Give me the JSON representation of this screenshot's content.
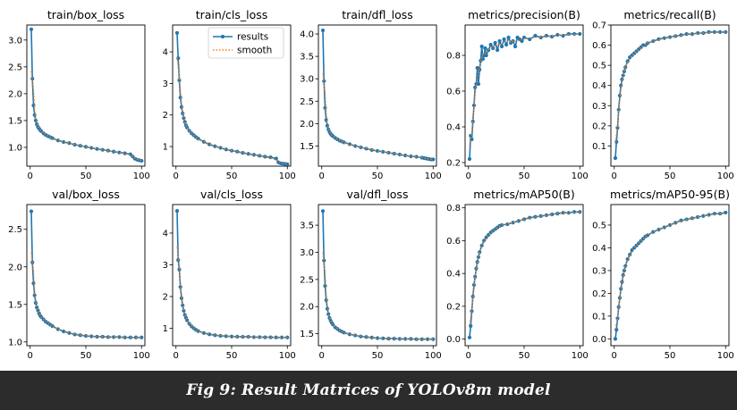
{
  "caption": "Fig 9: Result Matrices of YOLOv8m model",
  "colors": {
    "results": "#1f77b4",
    "smooth": "#ff7f0e"
  },
  "legend": {
    "results_label": "results",
    "smooth_label": "smooth"
  },
  "chart_data": [
    {
      "type": "line",
      "title": "train/box_loss",
      "xlim": [
        -3,
        103
      ],
      "ylim": [
        0.65,
        3.28
      ],
      "xticks": [
        0,
        50,
        100
      ],
      "yticks": [
        1.0,
        1.5,
        2.0,
        2.5,
        3.0
      ],
      "x": [
        1,
        2,
        3,
        4,
        5,
        6,
        7,
        8,
        9,
        10,
        12,
        14,
        16,
        18,
        20,
        25,
        30,
        35,
        40,
        45,
        50,
        55,
        60,
        65,
        70,
        75,
        80,
        85,
        90,
        92,
        94,
        96,
        98,
        100
      ],
      "values": [
        3.2,
        2.28,
        1.78,
        1.6,
        1.5,
        1.43,
        1.38,
        1.35,
        1.32,
        1.3,
        1.26,
        1.23,
        1.21,
        1.19,
        1.17,
        1.13,
        1.1,
        1.08,
        1.05,
        1.03,
        1.01,
        0.99,
        0.97,
        0.955,
        0.94,
        0.92,
        0.905,
        0.89,
        0.87,
        0.83,
        0.79,
        0.77,
        0.76,
        0.75
      ],
      "legend": false
    },
    {
      "type": "line",
      "title": "train/cls_loss",
      "xlim": [
        -3,
        103
      ],
      "ylim": [
        0.38,
        4.85
      ],
      "xticks": [
        0,
        50,
        100
      ],
      "yticks": [
        1,
        2,
        3,
        4
      ],
      "x": [
        1,
        2,
        3,
        4,
        5,
        6,
        7,
        8,
        9,
        10,
        12,
        14,
        16,
        18,
        20,
        25,
        30,
        35,
        40,
        45,
        50,
        55,
        60,
        65,
        70,
        75,
        80,
        85,
        90,
        92,
        94,
        96,
        98,
        100
      ],
      "values": [
        4.6,
        3.8,
        3.1,
        2.55,
        2.25,
        2.05,
        1.9,
        1.78,
        1.67,
        1.6,
        1.5,
        1.42,
        1.36,
        1.3,
        1.25,
        1.15,
        1.07,
        1.01,
        0.96,
        0.91,
        0.87,
        0.84,
        0.8,
        0.77,
        0.74,
        0.71,
        0.68,
        0.66,
        0.62,
        0.5,
        0.47,
        0.46,
        0.45,
        0.44
      ],
      "legend": true
    },
    {
      "type": "line",
      "title": "train/dfl_loss",
      "xlim": [
        -3,
        103
      ],
      "ylim": [
        1.05,
        4.2
      ],
      "xticks": [
        0,
        50,
        100
      ],
      "yticks": [
        1.5,
        2.0,
        2.5,
        3.0,
        3.5,
        4.0
      ],
      "x": [
        1,
        2,
        3,
        4,
        5,
        6,
        7,
        8,
        9,
        10,
        12,
        14,
        16,
        18,
        20,
        25,
        30,
        35,
        40,
        45,
        50,
        55,
        60,
        65,
        70,
        75,
        80,
        85,
        90,
        92,
        94,
        96,
        98,
        100
      ],
      "values": [
        4.08,
        2.95,
        2.35,
        2.08,
        1.95,
        1.87,
        1.81,
        1.77,
        1.74,
        1.72,
        1.68,
        1.65,
        1.62,
        1.6,
        1.58,
        1.54,
        1.5,
        1.47,
        1.44,
        1.41,
        1.39,
        1.37,
        1.35,
        1.33,
        1.31,
        1.29,
        1.27,
        1.26,
        1.24,
        1.23,
        1.22,
        1.21,
        1.2,
        1.2
      ],
      "legend": false
    },
    {
      "type": "line",
      "title": "metrics/precision(B)",
      "xlim": [
        -3,
        103
      ],
      "ylim": [
        0.18,
        0.97
      ],
      "xticks": [
        0,
        50,
        100
      ],
      "yticks": [
        0.2,
        0.4,
        0.6,
        0.8
      ],
      "x": [
        1,
        2,
        3,
        4,
        5,
        6,
        7,
        8,
        9,
        10,
        11,
        12,
        13,
        14,
        15,
        16,
        18,
        20,
        22,
        24,
        26,
        28,
        30,
        32,
        34,
        36,
        38,
        40,
        42,
        44,
        46,
        48,
        50,
        55,
        60,
        65,
        70,
        75,
        80,
        85,
        90,
        95,
        100
      ],
      "values": [
        0.22,
        0.35,
        0.33,
        0.43,
        0.52,
        0.62,
        0.64,
        0.73,
        0.64,
        0.72,
        0.77,
        0.85,
        0.78,
        0.8,
        0.84,
        0.8,
        0.83,
        0.86,
        0.84,
        0.87,
        0.83,
        0.88,
        0.85,
        0.89,
        0.86,
        0.9,
        0.87,
        0.88,
        0.85,
        0.9,
        0.89,
        0.88,
        0.9,
        0.89,
        0.91,
        0.9,
        0.91,
        0.905,
        0.915,
        0.91,
        0.92,
        0.92,
        0.92
      ],
      "legend": false
    },
    {
      "type": "line",
      "title": "metrics/recall(B)",
      "xlim": [
        -3,
        103
      ],
      "ylim": [
        0.0,
        0.7
      ],
      "xticks": [
        0,
        50,
        100
      ],
      "yticks": [
        0.1,
        0.2,
        0.3,
        0.4,
        0.5,
        0.6,
        0.7
      ],
      "x": [
        1,
        2,
        3,
        4,
        5,
        6,
        7,
        8,
        9,
        10,
        12,
        14,
        16,
        18,
        20,
        22,
        24,
        26,
        28,
        30,
        35,
        40,
        45,
        50,
        55,
        60,
        65,
        70,
        75,
        80,
        85,
        90,
        95,
        100
      ],
      "values": [
        0.04,
        0.12,
        0.19,
        0.28,
        0.35,
        0.4,
        0.43,
        0.45,
        0.47,
        0.49,
        0.52,
        0.54,
        0.55,
        0.56,
        0.57,
        0.58,
        0.59,
        0.6,
        0.6,
        0.61,
        0.62,
        0.63,
        0.635,
        0.64,
        0.645,
        0.65,
        0.655,
        0.655,
        0.66,
        0.66,
        0.665,
        0.665,
        0.665,
        0.665
      ],
      "legend": false
    },
    {
      "type": "line",
      "title": "val/box_loss",
      "xlim": [
        -3,
        103
      ],
      "ylim": [
        0.95,
        2.83
      ],
      "xticks": [
        0,
        50,
        100
      ],
      "yticks": [
        1.0,
        1.5,
        2.0,
        2.5
      ],
      "x": [
        1,
        2,
        3,
        4,
        5,
        6,
        7,
        8,
        9,
        10,
        12,
        14,
        16,
        18,
        20,
        25,
        30,
        35,
        40,
        45,
        50,
        55,
        60,
        65,
        70,
        75,
        80,
        85,
        90,
        95,
        100
      ],
      "values": [
        2.74,
        2.06,
        1.78,
        1.62,
        1.52,
        1.46,
        1.42,
        1.38,
        1.35,
        1.33,
        1.3,
        1.27,
        1.25,
        1.23,
        1.21,
        1.17,
        1.14,
        1.12,
        1.1,
        1.09,
        1.08,
        1.075,
        1.07,
        1.07,
        1.065,
        1.065,
        1.065,
        1.06,
        1.06,
        1.06,
        1.06
      ],
      "legend": false
    },
    {
      "type": "line",
      "title": "val/cls_loss",
      "xlim": [
        -3,
        103
      ],
      "ylim": [
        0.45,
        4.9
      ],
      "xticks": [
        0,
        50,
        100
      ],
      "yticks": [
        1,
        2,
        3,
        4
      ],
      "x": [
        1,
        2,
        3,
        4,
        5,
        6,
        7,
        8,
        9,
        10,
        12,
        14,
        16,
        18,
        20,
        25,
        30,
        35,
        40,
        45,
        50,
        55,
        60,
        65,
        70,
        75,
        80,
        85,
        90,
        95,
        100
      ],
      "values": [
        4.7,
        3.15,
        2.85,
        2.3,
        1.95,
        1.72,
        1.55,
        1.42,
        1.33,
        1.25,
        1.14,
        1.06,
        1.0,
        0.95,
        0.91,
        0.85,
        0.81,
        0.78,
        0.76,
        0.75,
        0.74,
        0.735,
        0.73,
        0.73,
        0.72,
        0.72,
        0.715,
        0.715,
        0.71,
        0.71,
        0.71
      ],
      "legend": false
    },
    {
      "type": "line",
      "title": "val/dfl_loss",
      "xlim": [
        -3,
        103
      ],
      "ylim": [
        1.28,
        3.88
      ],
      "xticks": [
        0,
        50,
        100
      ],
      "yticks": [
        1.5,
        2.0,
        2.5,
        3.0,
        3.5
      ],
      "x": [
        1,
        2,
        3,
        4,
        5,
        6,
        7,
        8,
        9,
        10,
        12,
        14,
        16,
        18,
        20,
        25,
        30,
        35,
        40,
        45,
        50,
        55,
        60,
        65,
        70,
        75,
        80,
        85,
        90,
        95,
        100
      ],
      "values": [
        3.76,
        2.85,
        2.38,
        2.12,
        1.96,
        1.86,
        1.79,
        1.74,
        1.7,
        1.67,
        1.62,
        1.59,
        1.56,
        1.54,
        1.52,
        1.49,
        1.47,
        1.45,
        1.44,
        1.43,
        1.42,
        1.415,
        1.41,
        1.41,
        1.405,
        1.405,
        1.405,
        1.4,
        1.4,
        1.4,
        1.4
      ],
      "legend": false
    },
    {
      "type": "line",
      "title": "metrics/mAP50(B)",
      "xlim": [
        -3,
        103
      ],
      "ylim": [
        -0.04,
        0.82
      ],
      "xticks": [
        0,
        50,
        100
      ],
      "yticks": [
        0.0,
        0.2,
        0.4,
        0.6,
        0.8
      ],
      "x": [
        1,
        2,
        3,
        4,
        5,
        6,
        7,
        8,
        9,
        10,
        12,
        14,
        16,
        18,
        20,
        22,
        24,
        26,
        28,
        30,
        35,
        40,
        45,
        50,
        55,
        60,
        65,
        70,
        75,
        80,
        85,
        90,
        95,
        100
      ],
      "values": [
        0.01,
        0.08,
        0.17,
        0.26,
        0.33,
        0.38,
        0.43,
        0.47,
        0.5,
        0.53,
        0.57,
        0.6,
        0.62,
        0.635,
        0.65,
        0.66,
        0.67,
        0.68,
        0.69,
        0.695,
        0.7,
        0.71,
        0.72,
        0.73,
        0.74,
        0.745,
        0.75,
        0.755,
        0.76,
        0.765,
        0.77,
        0.77,
        0.775,
        0.775
      ],
      "legend": false
    },
    {
      "type": "line",
      "title": "metrics/mAP50-95(B)",
      "xlim": [
        -3,
        103
      ],
      "ylim": [
        -0.03,
        0.59
      ],
      "xticks": [
        0,
        50,
        100
      ],
      "yticks": [
        0.0,
        0.1,
        0.2,
        0.3,
        0.4,
        0.5
      ],
      "x": [
        1,
        2,
        3,
        4,
        5,
        6,
        7,
        8,
        9,
        10,
        12,
        14,
        16,
        18,
        20,
        22,
        24,
        26,
        28,
        30,
        35,
        40,
        45,
        50,
        55,
        60,
        65,
        70,
        75,
        80,
        85,
        90,
        95,
        100
      ],
      "values": [
        0.0,
        0.04,
        0.09,
        0.14,
        0.18,
        0.22,
        0.25,
        0.28,
        0.3,
        0.32,
        0.35,
        0.37,
        0.39,
        0.4,
        0.41,
        0.42,
        0.43,
        0.44,
        0.45,
        0.455,
        0.47,
        0.48,
        0.49,
        0.5,
        0.51,
        0.52,
        0.525,
        0.53,
        0.535,
        0.54,
        0.545,
        0.55,
        0.55,
        0.555
      ],
      "legend": false
    }
  ]
}
